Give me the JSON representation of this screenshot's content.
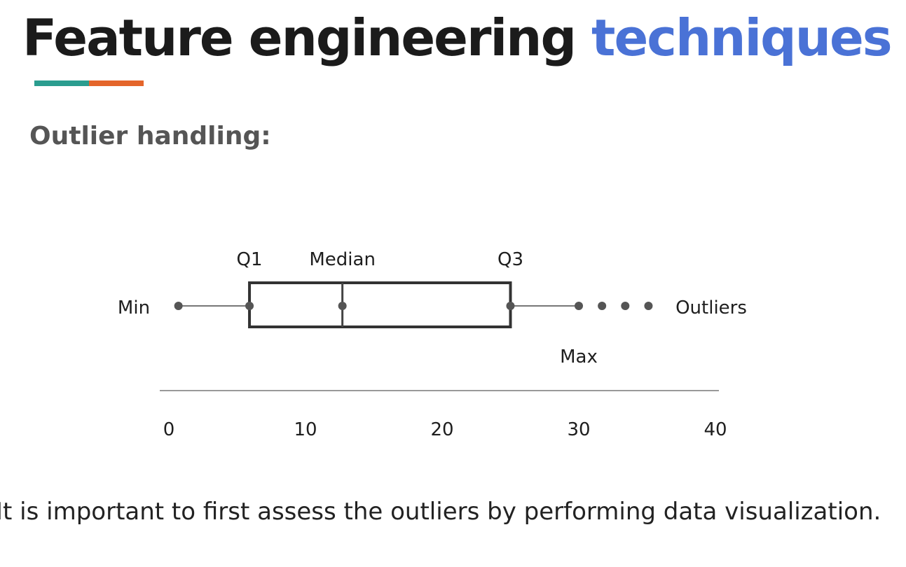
{
  "slide": {
    "title_main": "Feature engineering ",
    "title_accent": "techniques",
    "subtitle": "Outlier handling:",
    "footer_text": "It is important to first assess the outliers by performing data visualization.",
    "colors": {
      "title": "#1b1b1b",
      "accent": "#4a72d6",
      "underline_left": "#2a9d8f",
      "underline_right": "#e4652a",
      "subtitle": "#555555"
    }
  },
  "diagram": {
    "labels": {
      "min": "Min",
      "q1": "Q1",
      "median": "Median",
      "q3": "Q3",
      "max": "Max",
      "outliers": "Outliers"
    },
    "axis_ticks": [
      "0",
      "10",
      "20",
      "30",
      "40"
    ],
    "values": {
      "min": 0.7,
      "q1": 5.9,
      "median": 12.7,
      "q3": 25.0,
      "max": 30.0,
      "outliers": [
        31.7,
        33.4,
        35.1
      ]
    },
    "axis_range": [
      0,
      40
    ]
  }
}
